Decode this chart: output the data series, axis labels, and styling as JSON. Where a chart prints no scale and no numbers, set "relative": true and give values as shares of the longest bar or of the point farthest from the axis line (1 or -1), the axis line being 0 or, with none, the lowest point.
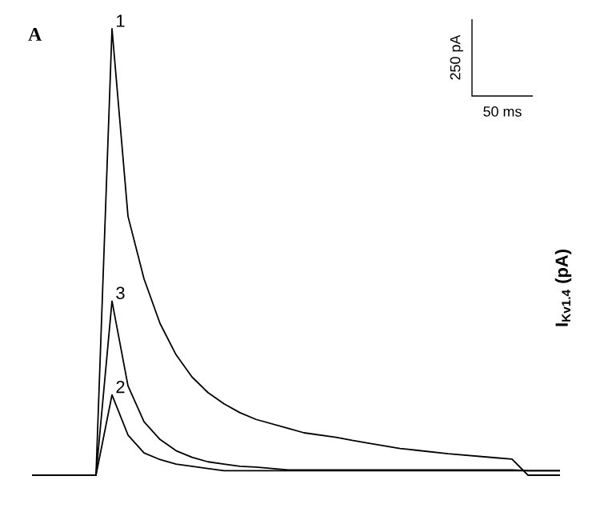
{
  "chart_data": {
    "type": "line",
    "relative": true,
    "ylabel": "I$_{Kv1.4}$ (pA)",
    "annotations": [
      "A",
      "250 pA",
      "50 ms"
    ],
    "categories": [
      null,
      null,
      null,
      null,
      null,
      null,
      null,
      null,
      null,
      null,
      null,
      null,
      null,
      null,
      null,
      null,
      null,
      null,
      null,
      null,
      null,
      null,
      null,
      null,
      null,
      null,
      null,
      null,
      null,
      null,
      null,
      null,
      null,
      null
    ],
    "series": [
      {
        "name": "1",
        "color": "#000000",
        "values": [
          0,
          0,
          0,
          0,
          0,
          1,
          0.58,
          0.44,
          0.34,
          0.27,
          0.22,
          0.185,
          0.16,
          0.14,
          0.125,
          0.115,
          0.105,
          0.095,
          0.09,
          0.085,
          0.078,
          0.072,
          0.066,
          0.06,
          0.056,
          0.052,
          0.048,
          0.045,
          0.042,
          0.039,
          0.036,
          0,
          0,
          0
        ]
      },
      {
        "name": "2",
        "color": "#000000",
        "values": [
          0,
          0,
          0,
          0,
          0,
          0.18,
          0.09,
          0.05,
          0.035,
          0.025,
          0.02,
          0.015,
          0.01,
          0.01,
          0.01,
          0.01,
          0.01,
          0.01,
          0.01,
          0.01,
          0.01,
          0.01,
          0.01,
          0.01,
          0.01,
          0.01,
          0.01,
          0.01,
          0.01,
          0.01,
          0.01,
          0.01,
          0.01,
          0.01
        ]
      },
      {
        "name": "3",
        "color": "#000000",
        "values": [
          0,
          0,
          0,
          0,
          0,
          0.39,
          0.2,
          0.12,
          0.08,
          0.055,
          0.04,
          0.03,
          0.025,
          0.02,
          0.018,
          0.015,
          0.012,
          0.012,
          0.012,
          0.012,
          0.012,
          0.012,
          0.012,
          0.012,
          0.012,
          0.012,
          0.012,
          0.012,
          0.012,
          0.012,
          0.012,
          0.01,
          0.01,
          0.01
        ]
      }
    ]
  }
}
